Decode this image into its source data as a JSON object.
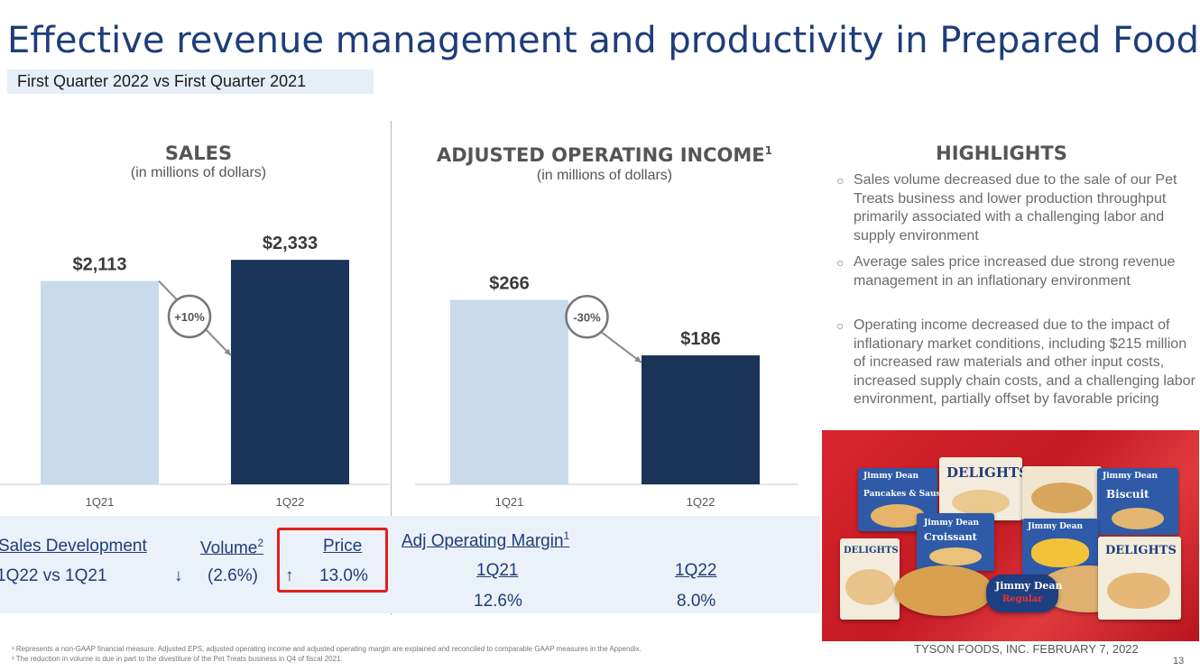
{
  "title": "Effective revenue management and productivity in Prepared Foods",
  "subtitle": "First Quarter 2022 vs First Quarter 2021",
  "sales_panel": {
    "heading": "SALES",
    "subheading": "(in millions of dollars)",
    "change_label": "+10%"
  },
  "aoi_panel": {
    "heading": "ADJUSTED OPERATING INCOME",
    "heading_sup": "1",
    "subheading": "(in millions of dollars)",
    "change_label": "-30%"
  },
  "chart_data": [
    {
      "type": "bar",
      "title": "SALES",
      "subtitle": "(in millions of dollars)",
      "categories": [
        "1Q21",
        "1Q22"
      ],
      "values": [
        2113,
        2333
      ],
      "value_labels": [
        "$2,113",
        "$2,333"
      ],
      "colors": [
        "#c9daed",
        "#1a3358"
      ],
      "ylim": [
        0,
        2400
      ],
      "annotation": "+10%"
    },
    {
      "type": "bar",
      "title": "ADJUSTED OPERATING INCOME",
      "subtitle": "(in millions of dollars)",
      "categories": [
        "1Q21",
        "1Q22"
      ],
      "values": [
        266,
        186
      ],
      "value_labels": [
        "$266",
        "$186"
      ],
      "colors": [
        "#c9daed",
        "#1a3358"
      ],
      "ylim": [
        0,
        333
      ],
      "annotation": "-30%"
    }
  ],
  "sales_development": {
    "heading": "Sales Development",
    "volume_label": "Volume",
    "volume_sup": "2",
    "price_label": "Price",
    "row_label": "1Q22 vs 1Q21",
    "volume_arrow": "↓",
    "volume_value": "(2.6%)",
    "price_arrow": "↑",
    "price_value": "13.0%"
  },
  "margin": {
    "heading": "Adj Operating Margin",
    "heading_sup": "1",
    "col1_label": "1Q21",
    "col2_label": "1Q22",
    "col1_value": "12.6%",
    "col2_value": "8.0%"
  },
  "highlights": {
    "heading": "HIGHLIGHTS",
    "bullet": "○",
    "items": [
      "Sales volume decreased due to the sale of our Pet Treats business and lower production throughput primarily associated with a challenging labor and supply environment",
      "Average sales price increased due strong revenue management in an inflationary environment",
      "Operating income decreased due to the impact of inflationary market conditions, including $215 million of increased raw materials and other input costs, increased supply chain costs, and a challenging labor environment, partially offset by favorable pricing"
    ]
  },
  "product_photo": {
    "brand_a": "Jimmy Dean",
    "brand_b": "DELIGHTS",
    "pkg1": "Pancakes & Sausage",
    "pkg2": "Croissant",
    "pkg3": "Biscuit",
    "pkg4": "Regular"
  },
  "footnotes": [
    "¹ Represents a non-GAAP financial measure. Adjusted EPS, adjusted operating income and adjusted operating margin are explained and reconciled to comparable GAAP measures in the Appendix.",
    "² The reduction in volume is due in part to the divestiture of the Pet Treats business in Q4 of fiscal 2021."
  ],
  "company_line": "TYSON FOODS, INC. FEBRUARY 7, 2022",
  "page_number": "13"
}
